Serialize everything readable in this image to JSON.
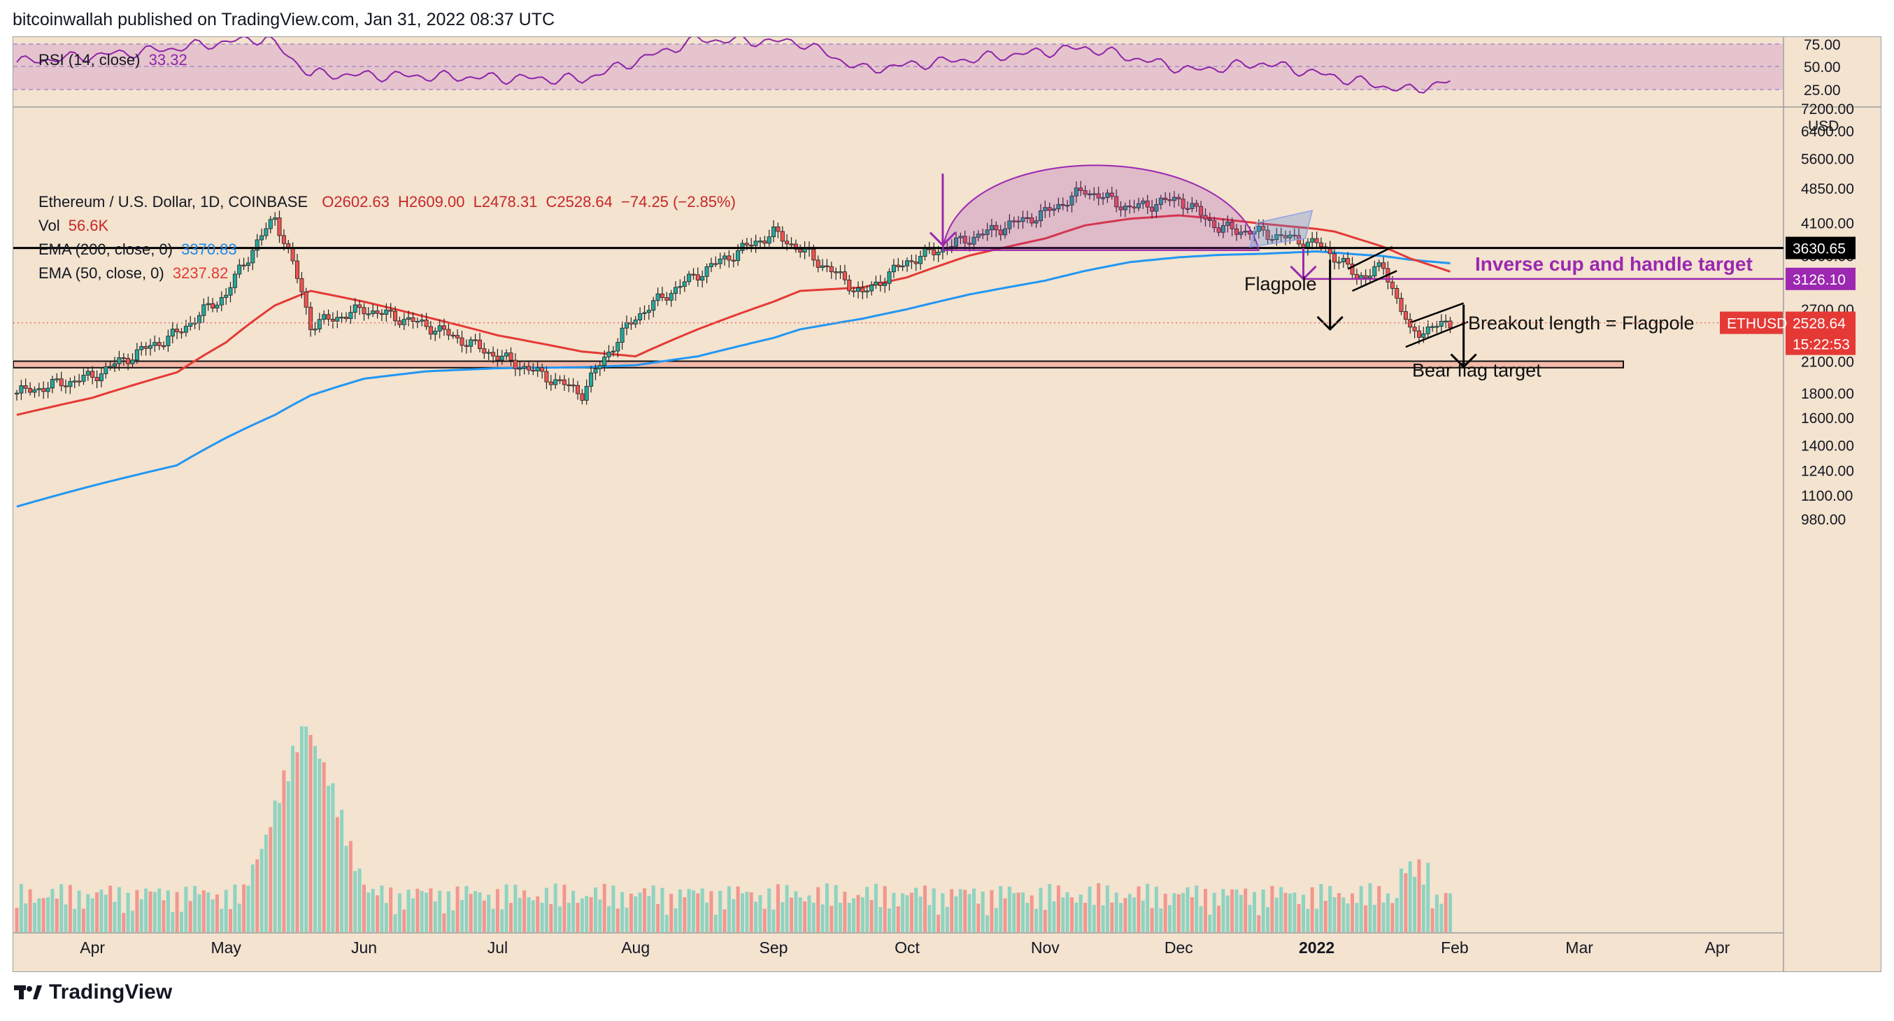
{
  "header": {
    "published": "bitcoinwallah published on TradingView.com, Jan 31, 2022 08:37 UTC"
  },
  "rsi": {
    "label": "RSI (14, close)",
    "value": "33.32",
    "ticks": [
      "75.00",
      "50.00",
      "25.00"
    ],
    "line_color": "#8e24aa"
  },
  "price_legend": {
    "pair": "Ethereum / U.S. Dollar, 1D, COINBASE",
    "open": "O2602.63",
    "high": "H2609.00",
    "low": "L2478.31",
    "close": "C2528.64",
    "change": "−74.25 (−2.85%)"
  },
  "vol_legend": {
    "label": "Vol",
    "value": "56.6K"
  },
  "ema200_legend": {
    "label": "EMA (200, close, 0)",
    "value": "3370.83",
    "color": "#2196f3"
  },
  "ema50_legend": {
    "label": "EMA (50, close, 0)",
    "value": "3237.82",
    "color": "#e53935"
  },
  "price_axis": {
    "ticks": [
      "7200.00",
      "6400.00",
      "5600.00",
      "4850.00",
      "4100.00",
      "3500.00",
      "2700.00",
      "2100.00",
      "1800.00",
      "1600.00",
      "1400.00",
      "1240.00",
      "1100.00",
      "980.00"
    ],
    "currency": "USD"
  },
  "time_axis": {
    "labels": [
      "Apr",
      "May",
      "Jun",
      "Jul",
      "Aug",
      "Sep",
      "Oct",
      "Nov",
      "Dec",
      "2022",
      "Feb",
      "Mar",
      "Apr"
    ]
  },
  "badges": {
    "resistance": "3630.65",
    "cup_target": "3126.10",
    "symbol": "ETHUSD",
    "last_price": "2528.64",
    "countdown": "15:22:53"
  },
  "annotations": {
    "cup_target": "Inverse cup and handle target",
    "flagpole": "Flagpole",
    "breakout": "Breakout length = Flagpole",
    "bear_target": "Bear flag target"
  },
  "colors": {
    "bull": "#26a69a",
    "bear": "#ef5350",
    "ema200": "#2196f3",
    "ema50": "#e53935",
    "purple": "#9c27b0",
    "background": "#f3e3cf"
  },
  "footer": {
    "brand": "TradingView"
  },
  "chart_data": {
    "type": "line",
    "title": "Ethereum / U.S. Dollar, 1D, COINBASE",
    "scale": "log",
    "ylim": [
      900,
      7200
    ],
    "x": [
      "2021-03-15",
      "2021-04-01",
      "2021-04-20",
      "2021-05-01",
      "2021-05-12",
      "2021-05-20",
      "2021-06-01",
      "2021-06-15",
      "2021-07-01",
      "2021-07-20",
      "2021-08-01",
      "2021-08-15",
      "2021-09-01",
      "2021-09-07",
      "2021-09-21",
      "2021-10-01",
      "2021-10-15",
      "2021-11-01",
      "2021-11-10",
      "2021-11-20",
      "2021-12-01",
      "2021-12-10",
      "2021-12-20",
      "2022-01-01",
      "2022-01-05",
      "2022-01-10",
      "2022-01-16",
      "2022-01-22",
      "2022-01-31"
    ],
    "series": [
      {
        "name": "Ethereum / U.S. Dollar",
        "values": [
          1800,
          1950,
          2400,
          2900,
          4200,
          2500,
          2700,
          2500,
          2150,
          1800,
          2600,
          3200,
          3900,
          3600,
          2900,
          3400,
          3800,
          4300,
          4800,
          4400,
          4600,
          4000,
          3900,
          3700,
          3500,
          3150,
          3300,
          2400,
          2528.64
        ]
      },
      {
        "name": "EMA (200, close, 0)",
        "values": [
          1040,
          1150,
          1270,
          1450,
          1620,
          1780,
          1930,
          2000,
          2030,
          2040,
          2060,
          2150,
          2350,
          2450,
          2580,
          2700,
          2900,
          3100,
          3250,
          3390,
          3470,
          3510,
          3530,
          3570,
          3550,
          3520,
          3490,
          3430,
          3370.83
        ]
      },
      {
        "name": "EMA (50, close, 0)",
        "values": [
          1620,
          1760,
          1990,
          2300,
          2750,
          2950,
          2800,
          2600,
          2380,
          2200,
          2150,
          2450,
          2800,
          2950,
          3000,
          3150,
          3500,
          3800,
          4050,
          4180,
          4250,
          4180,
          4080,
          3980,
          3930,
          3800,
          3650,
          3450,
          3237.82
        ]
      }
    ],
    "levels": [
      3630.65,
      3126.1
    ],
    "support_zone": [
      2035,
      2100
    ],
    "rsi": {
      "x": [
        "2021-03-15",
        "2021-04-15",
        "2021-05-10",
        "2021-05-20",
        "2021-07-20",
        "2021-08-15",
        "2021-09-07",
        "2021-09-21",
        "2021-11-10",
        "2021-12-04",
        "2021-12-20",
        "2022-01-06",
        "2022-01-21",
        "2022-01-31"
      ],
      "values": [
        55,
        68,
        82,
        42,
        36,
        80,
        77,
        47,
        71,
        46,
        54,
        38,
        24,
        33.32
      ],
      "ylim": [
        10,
        90
      ]
    },
    "volume_peak": "2021-05-19"
  }
}
